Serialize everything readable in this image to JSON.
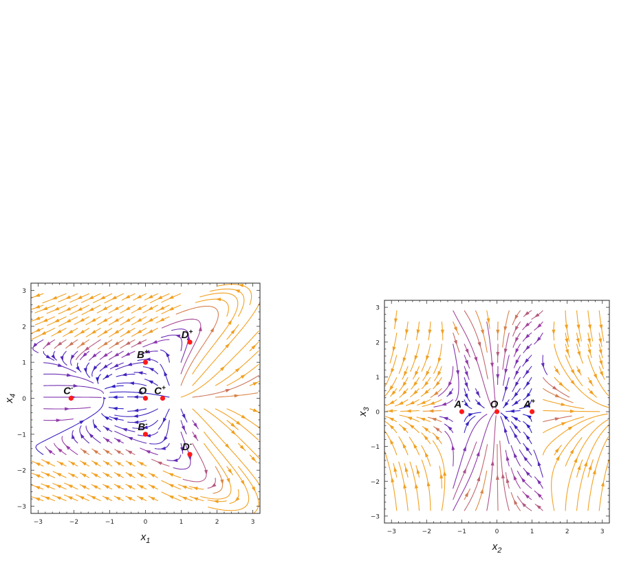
{
  "chart_data": [
    {
      "type": "stream",
      "xlabel_main": "x",
      "xlabel_sub": "1",
      "ylabel_main": "x",
      "ylabel_sub": "4",
      "xlim": [
        -3.2,
        3.2
      ],
      "ylim": [
        -3.2,
        3.2
      ],
      "xticks": [
        -3,
        -2,
        -1,
        0,
        1,
        2,
        3
      ],
      "yticks": [
        -3,
        -2,
        -1,
        0,
        1,
        2,
        3
      ],
      "critical_points": [
        {
          "base": "C",
          "sup": "-",
          "x": -2.08,
          "y": 0
        },
        {
          "base": "O",
          "sup": "",
          "x": 0,
          "y": 0
        },
        {
          "base": "C",
          "sup": "+",
          "x": 0.48,
          "y": 0
        },
        {
          "base": "B",
          "sup": "+",
          "x": 0,
          "y": 1
        },
        {
          "base": "B",
          "sup": "-",
          "x": 0,
          "y": -1
        },
        {
          "base": "D",
          "sup": "+",
          "x": 1.24,
          "y": 1.56
        },
        {
          "base": "D",
          "sup": "-",
          "x": 1.24,
          "y": -1.56
        }
      ]
    },
    {
      "type": "stream",
      "xlabel_main": "x",
      "xlabel_sub": "2",
      "ylabel_main": "x",
      "ylabel_sub": "3",
      "xlim": [
        -3.2,
        3.2
      ],
      "ylim": [
        -3.2,
        3.2
      ],
      "xticks": [
        -3,
        -2,
        -1,
        0,
        1,
        2,
        3
      ],
      "yticks": [
        -3,
        -2,
        -1,
        0,
        1,
        2,
        3
      ],
      "critical_points": [
        {
          "base": "A",
          "sup": "-",
          "x": -1,
          "y": 0
        },
        {
          "base": "O",
          "sup": "",
          "x": 0,
          "y": 0
        },
        {
          "base": "A",
          "sup": "+",
          "x": 1,
          "y": 0
        }
      ]
    }
  ],
  "colors": {
    "slow": "#1a1ac8",
    "mid": "#9a3aa8",
    "fast": "#f2a020",
    "critical_point": "#ff1a1a",
    "frame": "#222222"
  }
}
